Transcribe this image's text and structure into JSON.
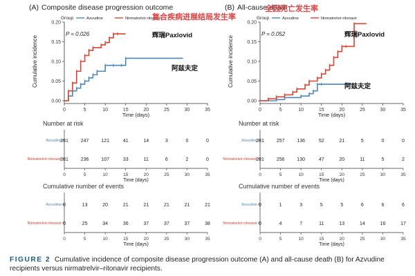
{
  "chart_data": [
    {
      "type": "line",
      "panel_label": "(A)",
      "title": "Composite disease progression outcome",
      "annotation_title": "复合疾病进展结局发生率",
      "legend_label": "Group",
      "legend_position": "top-left",
      "xlabel": "Time (days)",
      "ylabel": "Cumulative incidence",
      "xlim": [
        0,
        35
      ],
      "ylim": [
        0,
        0.2
      ],
      "x_ticks": [
        0,
        5,
        10,
        15,
        20,
        25,
        30,
        35
      ],
      "y_ticks": [
        0.0,
        0.05,
        0.1,
        0.15,
        0.2
      ],
      "p_value": "P = 0.026",
      "grid": false,
      "series": [
        {
          "name": "Azvudine",
          "color": "#4a86b8",
          "annotation": "阿兹夫定",
          "x": [
            0,
            1,
            2,
            3,
            4,
            5,
            6,
            7,
            8,
            10,
            12,
            14,
            15,
            29
          ],
          "y": [
            0,
            0.012,
            0.025,
            0.032,
            0.042,
            0.05,
            0.058,
            0.066,
            0.075,
            0.09,
            0.09,
            0.09,
            0.108,
            0.108
          ]
        },
        {
          "name": "Nirmatrelvir-ritonavir",
          "color": "#d9432f",
          "annotation": "辉瑞Paxlovid",
          "x": [
            0,
            1,
            2,
            3,
            4,
            5,
            6,
            7,
            9,
            10,
            11,
            12,
            13,
            15
          ],
          "y": [
            0,
            0.025,
            0.045,
            0.075,
            0.1,
            0.115,
            0.128,
            0.135,
            0.142,
            0.148,
            0.16,
            0.17,
            0.17,
            0.17
          ]
        }
      ],
      "risk_table": {
        "title": "Number at risk",
        "times": [
          0,
          5,
          10,
          15,
          20,
          25,
          30,
          35
        ],
        "rows": [
          {
            "label": "Azvudine",
            "values": [
              "281",
              "247",
              "121",
              "41",
              "14",
              "3",
              "0",
              "0"
            ]
          },
          {
            "label": "Nirmatrelvir-ritonavir",
            "values": [
              "281",
              "236",
              "107",
              "33",
              "11",
              "6",
              "2",
              "0"
            ]
          }
        ]
      },
      "events_table": {
        "title": "Cumulative number of events",
        "times": [
          0,
          5,
          10,
          15,
          20,
          25,
          30,
          35
        ],
        "rows": [
          {
            "label": "Azvudine",
            "values": [
              "0",
              "13",
              "20",
              "21",
              "21",
              "21",
              "21",
              "21"
            ]
          },
          {
            "label": "Nirmatrelvir-ritonavir",
            "values": [
              "0",
              "25",
              "34",
              "36",
              "37",
              "37",
              "37",
              "38"
            ]
          }
        ]
      }
    },
    {
      "type": "line",
      "panel_label": "(B)",
      "title": "All-cause death",
      "annotation_title": "全因死亡发生率",
      "legend_label": "Group",
      "legend_position": "top-left",
      "xlabel": "Time (days)",
      "ylabel": "Cumulative incidence",
      "xlim": [
        0,
        35
      ],
      "ylim": [
        0,
        0.2
      ],
      "x_ticks": [
        0,
        5,
        10,
        15,
        20,
        25,
        30,
        35
      ],
      "y_ticks": [
        0.0,
        0.05,
        0.1,
        0.15,
        0.2
      ],
      "p_value": "P = 0.052",
      "grid": false,
      "series": [
        {
          "name": "Azvudine",
          "color": "#4a86b8",
          "annotation": "阿兹夫定",
          "x": [
            0,
            4,
            6,
            10,
            12,
            13,
            14,
            15,
            23
          ],
          "y": [
            0,
            0.003,
            0.008,
            0.012,
            0.018,
            0.025,
            0.042,
            0.042,
            0.042
          ]
        },
        {
          "name": "Nirmatrelvir-ritonavir",
          "color": "#d9432f",
          "annotation": "辉瑞Paxlovid",
          "x": [
            0,
            2,
            4,
            6,
            8,
            9,
            11,
            12,
            14,
            15,
            16,
            17,
            18,
            19,
            20,
            21,
            23,
            26
          ],
          "y": [
            0,
            0.005,
            0.01,
            0.015,
            0.022,
            0.03,
            0.04,
            0.05,
            0.058,
            0.068,
            0.078,
            0.09,
            0.11,
            0.125,
            0.138,
            0.138,
            0.196,
            0.196
          ]
        }
      ],
      "risk_table": {
        "title": "Number at risk",
        "times": [
          0,
          5,
          10,
          15,
          20,
          25,
          30,
          35
        ],
        "rows": [
          {
            "label": "Azvudine",
            "values": [
              "281",
              "257",
              "136",
              "52",
              "21",
              "5",
              "0",
              "0"
            ]
          },
          {
            "label": "Nirmatrelvir-ritonavir",
            "values": [
              "281",
              "256",
              "130",
              "47",
              "20",
              "11",
              "5",
              "2"
            ]
          }
        ]
      },
      "events_table": {
        "title": "Cumulative number of events",
        "times": [
          0,
          5,
          10,
          15,
          20,
          25,
          30,
          35
        ],
        "rows": [
          {
            "label": "Azvudine",
            "values": [
              "0",
              "1",
              "3",
              "5",
              "5",
              "6",
              "6",
              "6"
            ]
          },
          {
            "label": "Nirmatrelvir-ritonavir",
            "values": [
              "0",
              "4",
              "7",
              "11",
              "13",
              "14",
              "16",
              "17"
            ]
          }
        ]
      }
    }
  ],
  "caption": {
    "figure_label": "FIGURE 2",
    "text": "Cumulative incidence of composite disease progression outcome (A) and all-cause death (B) for Azvudine recipients versus nirmatrelvir–ritonavir recipients."
  },
  "colors": {
    "azvudine": "#4a86b8",
    "nirmatrelvir": "#d9432f",
    "annotation_red": "#e04040",
    "caption_label": "#1a5a8a"
  }
}
